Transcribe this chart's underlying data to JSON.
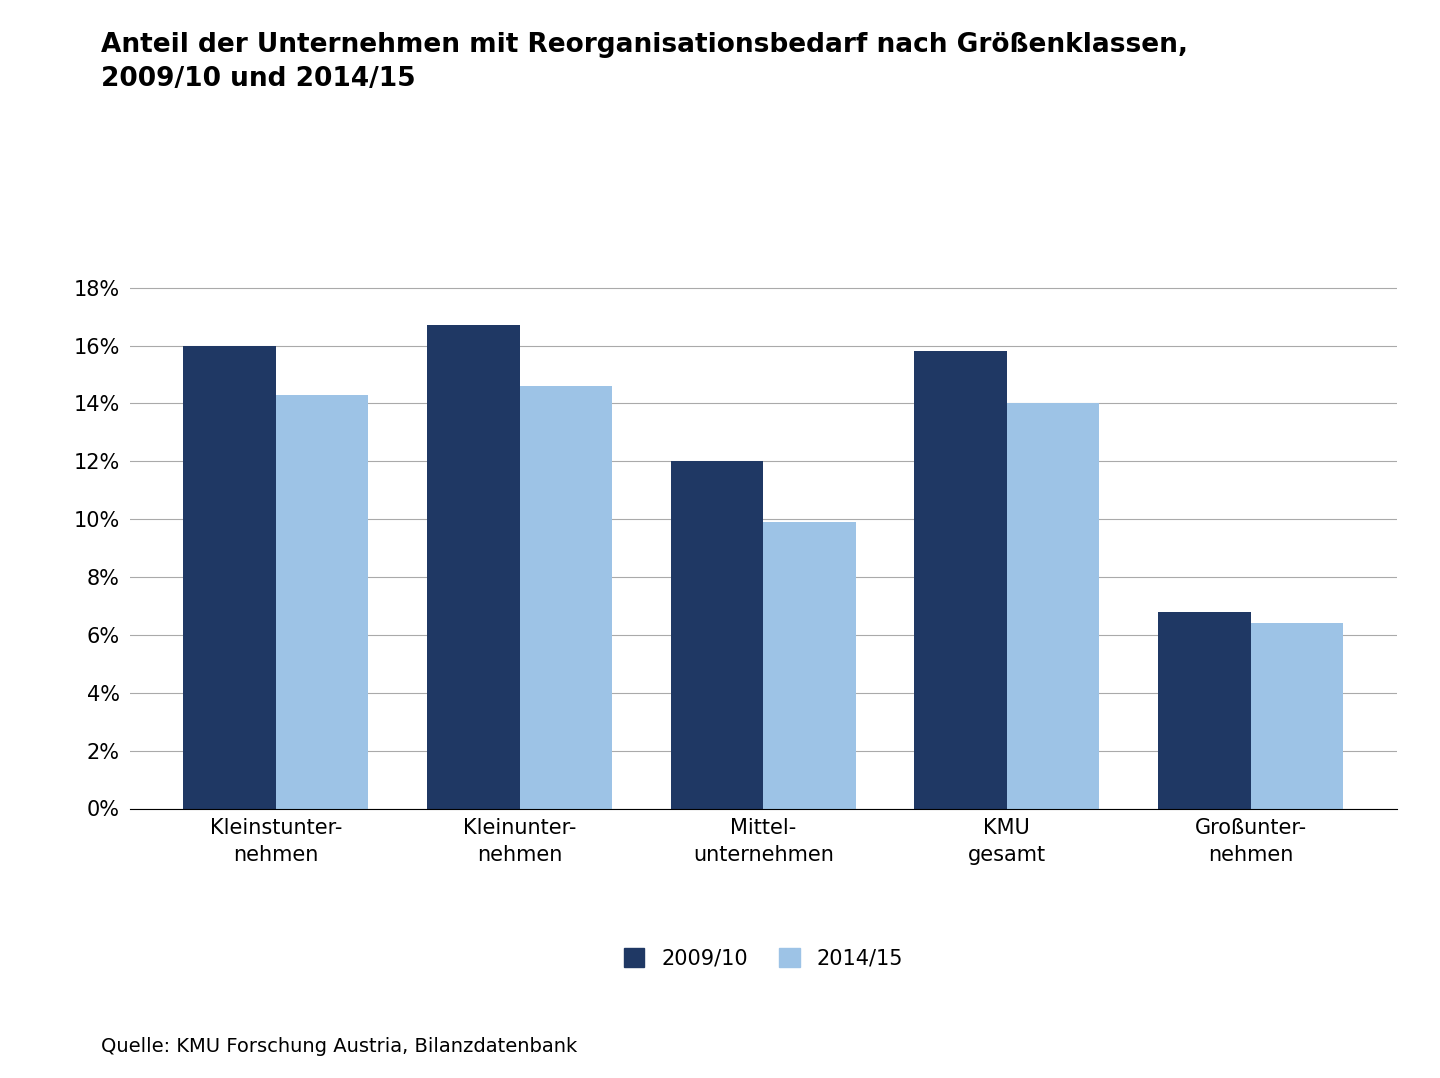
{
  "title": "Anteil der Unternehmen mit Reorganisationsbedarf nach Größenklassen,\n2009/10 und 2014/15",
  "categories_display": [
    "Kleinstunter-\nnehmen",
    "Kleinunter-\nnehmen",
    "Mittel-\nunternehmen",
    "KMU\ngesamt",
    "Großunter-\nnehmen"
  ],
  "series": [
    {
      "label": "2009/10",
      "values": [
        0.16,
        0.167,
        0.12,
        0.158,
        0.068
      ],
      "color": "#1f3864"
    },
    {
      "label": "2014/15",
      "values": [
        0.143,
        0.146,
        0.099,
        0.14,
        0.064
      ],
      "color": "#9dc3e6"
    }
  ],
  "ylim": [
    0,
    0.19
  ],
  "yticks": [
    0.0,
    0.02,
    0.04,
    0.06,
    0.08,
    0.1,
    0.12,
    0.14,
    0.16,
    0.18
  ],
  "ytick_labels": [
    "0%",
    "2%",
    "4%",
    "6%",
    "8%",
    "10%",
    "12%",
    "14%",
    "16%",
    "18%"
  ],
  "bar_width": 0.38,
  "background_color": "#ffffff",
  "plot_bg_color": "#ffffff",
  "grid_color": "#aaaaaa",
  "title_fontsize": 19,
  "tick_fontsize": 15,
  "legend_fontsize": 15,
  "source_text": "Quelle: KMU Forschung Austria, Bilanzdatenbank",
  "source_fontsize": 14
}
